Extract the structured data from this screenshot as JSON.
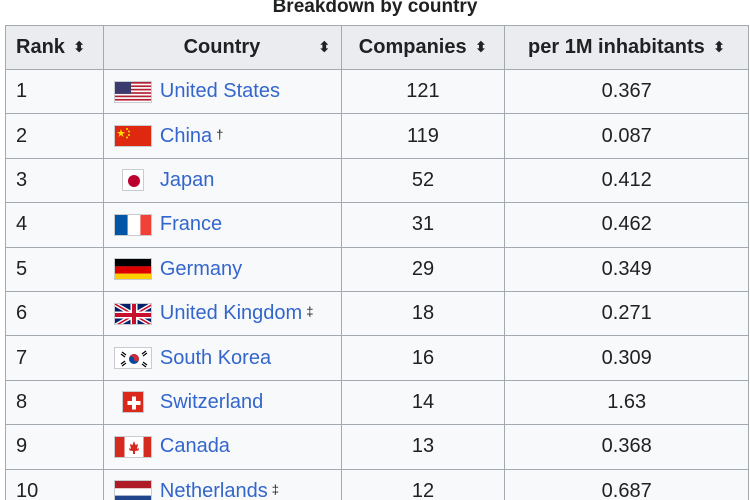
{
  "caption": "Breakdown by country",
  "columns": {
    "rank": "Rank",
    "country": "Country",
    "companies": "Companies",
    "per_million": "per 1M inhabitants",
    "sort_glyph": "⬍"
  },
  "rows": [
    {
      "rank": "1",
      "country": "United States",
      "note": "",
      "companies": "121",
      "per_million": "0.367",
      "flag": "us-flag"
    },
    {
      "rank": "2",
      "country": "China",
      "note": "†",
      "companies": "119",
      "per_million": "0.087",
      "flag": "china-flag"
    },
    {
      "rank": "3",
      "country": "Japan",
      "note": "",
      "companies": "52",
      "per_million": "0.412",
      "flag": "japan-flag"
    },
    {
      "rank": "4",
      "country": "France",
      "note": "",
      "companies": "31",
      "per_million": "0.462",
      "flag": "france-flag"
    },
    {
      "rank": "5",
      "country": "Germany",
      "note": "",
      "companies": "29",
      "per_million": "0.349",
      "flag": "germany-flag"
    },
    {
      "rank": "6",
      "country": "United Kingdom",
      "note": "‡",
      "companies": "18",
      "per_million": "0.271",
      "flag": "uk-flag"
    },
    {
      "rank": "7",
      "country": "South Korea",
      "note": "",
      "companies": "16",
      "per_million": "0.309",
      "flag": "south-korea-flag"
    },
    {
      "rank": "8",
      "country": "Switzerland",
      "note": "",
      "companies": "14",
      "per_million": "1.63",
      "flag": "switzerland-flag"
    },
    {
      "rank": "9",
      "country": "Canada",
      "note": "",
      "companies": "13",
      "per_million": "0.368",
      "flag": "canada-flag"
    },
    {
      "rank": "10",
      "country": "Netherlands",
      "note": "‡",
      "companies": "12",
      "per_million": "0.687",
      "flag": "netherlands-flag"
    }
  ],
  "colors": {
    "link": "#3366cc",
    "header_bg": "#eaecf0",
    "cell_bg": "#f8f9fa",
    "border": "#a2a9b1"
  }
}
